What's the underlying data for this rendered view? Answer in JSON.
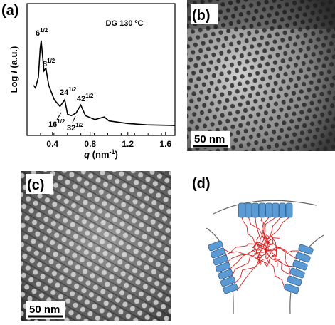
{
  "chart_data": {
    "type": "line",
    "annotation": "DG  130 ºC",
    "xlabel": [
      "q",
      " (nm",
      "-1",
      ")"
    ],
    "ylabel": [
      "Log ",
      "I",
      " (a.u.)"
    ],
    "x": [
      0.2,
      0.22,
      0.25,
      0.27,
      0.28,
      0.29,
      0.31,
      0.33,
      0.36,
      0.42,
      0.48,
      0.53,
      0.56,
      0.6,
      0.65,
      0.7,
      0.75,
      0.85,
      0.95,
      1.0,
      1.2,
      1.4,
      1.7
    ],
    "values": [
      38,
      36,
      44,
      66,
      72,
      64,
      49,
      51,
      38,
      27,
      22,
      27,
      16,
      15,
      17,
      23,
      15,
      12,
      14,
      11,
      9,
      8,
      7.5
    ],
    "color": "#000000",
    "xlim": [
      0.13,
      1.7
    ],
    "ylim": [
      0,
      100
    ],
    "xticks": [
      0.4,
      0.8,
      1.2,
      1.6
    ],
    "peak_labels": [
      {
        "base": "6",
        "exp": "1/2"
      },
      {
        "base": "8",
        "exp": "1/2"
      },
      {
        "base": "24",
        "exp": "1/2"
      },
      {
        "base": "42",
        "exp": "1/2"
      },
      {
        "base": "16",
        "exp": "1/2"
      },
      {
        "base": "32",
        "exp": "1/2"
      }
    ]
  },
  "panels": {
    "a": "(a)",
    "b": "(b)",
    "c": "(c)",
    "d": "(d)",
    "scale_b": "50 nm",
    "scale_c": "50 nm"
  }
}
